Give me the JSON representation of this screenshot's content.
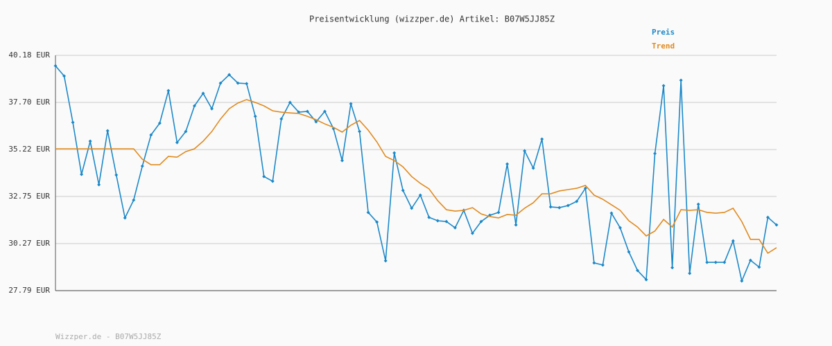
{
  "chart_data": {
    "type": "line",
    "title": "Preisentwicklung (wizzper.de) Artikel: B07W5JJ85Z",
    "footer": "Wizzper.de - B07W5JJ85Z",
    "ylim": [
      27.79,
      40.18
    ],
    "yticks": [
      {
        "value": 27.79,
        "label": "27.79 EUR"
      },
      {
        "value": 30.27,
        "label": "30.27 EUR"
      },
      {
        "value": 32.75,
        "label": "32.75 EUR"
      },
      {
        "value": 35.22,
        "label": "35.22 EUR"
      },
      {
        "value": 37.7,
        "label": "37.70 EUR"
      },
      {
        "value": 40.18,
        "label": "40.18 EUR"
      }
    ],
    "grid": true,
    "legend": "top-right",
    "series": [
      {
        "name": "Preis",
        "color": "#1b88c8",
        "markers": true,
        "values": [
          39.63,
          39.09,
          36.65,
          33.91,
          35.66,
          33.37,
          36.21,
          33.88,
          31.62,
          32.56,
          34.35,
          35.99,
          36.61,
          38.32,
          35.59,
          36.17,
          37.52,
          38.18,
          37.37,
          38.72,
          39.16,
          38.72,
          38.69,
          36.97,
          33.8,
          33.55,
          36.83,
          37.7,
          37.19,
          37.23,
          36.68,
          37.23,
          36.32,
          34.64,
          37.63,
          36.17,
          31.91,
          31.4,
          29.36,
          35.04,
          33.07,
          32.13,
          32.82,
          31.65,
          31.47,
          31.43,
          31.1,
          32.02,
          30.81,
          31.43,
          31.76,
          31.91,
          34.46,
          31.25,
          35.15,
          34.24,
          35.77,
          32.2,
          32.16,
          32.27,
          32.49,
          33.18,
          29.25,
          29.14,
          31.87,
          31.1,
          29.83,
          28.85,
          28.37,
          35.01,
          38.58,
          29.0,
          38.87,
          28.7,
          32.34,
          29.28,
          29.28,
          29.28,
          30.41,
          28.3,
          29.39,
          29.03,
          31.65,
          31.25
        ]
      },
      {
        "name": "Trend",
        "color": "#e08a1e",
        "markers": false,
        "values": [
          35.26,
          35.26,
          35.26,
          35.26,
          35.26,
          35.26,
          35.26,
          35.26,
          35.26,
          35.26,
          34.71,
          34.42,
          34.42,
          34.86,
          34.82,
          35.11,
          35.26,
          35.66,
          36.17,
          36.83,
          37.37,
          37.67,
          37.85,
          37.7,
          37.52,
          37.26,
          37.19,
          37.15,
          37.12,
          36.97,
          36.79,
          36.57,
          36.39,
          36.14,
          36.5,
          36.75,
          36.24,
          35.62,
          34.86,
          34.64,
          34.31,
          33.8,
          33.44,
          33.15,
          32.53,
          32.05,
          31.98,
          32.02,
          32.16,
          31.83,
          31.69,
          31.62,
          31.8,
          31.76,
          32.13,
          32.42,
          32.89,
          32.89,
          33.04,
          33.11,
          33.18,
          33.33,
          32.82,
          32.6,
          32.31,
          32.02,
          31.47,
          31.14,
          30.67,
          30.93,
          31.54,
          31.14,
          32.05,
          32.02,
          32.05,
          31.91,
          31.87,
          31.91,
          32.13,
          31.43,
          30.49,
          30.49,
          29.76,
          30.05
        ]
      }
    ]
  }
}
